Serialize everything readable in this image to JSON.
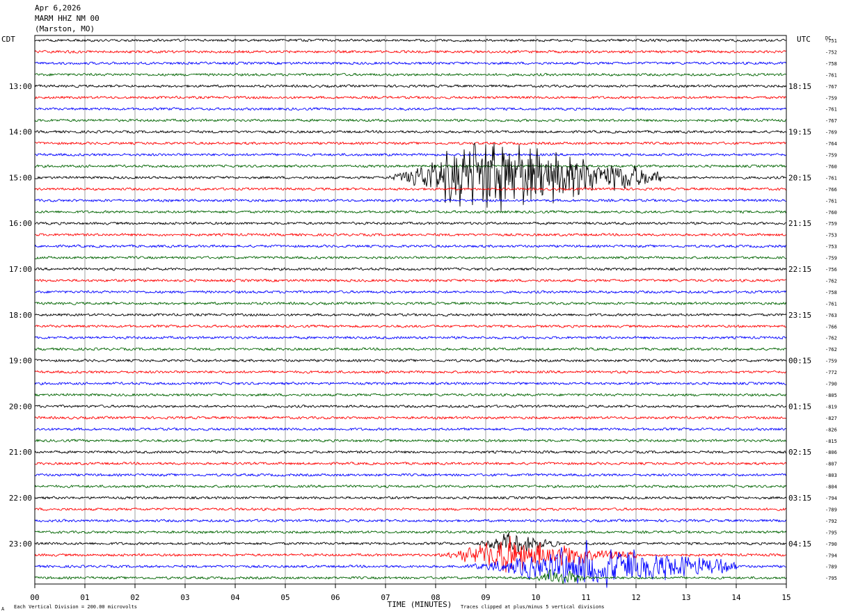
{
  "header": {
    "date": "Apr 6,2026",
    "station": "MARM HHZ NM 00",
    "location": "(Marston, MO)"
  },
  "axis": {
    "left_label": "CDT",
    "right_label": "UTC",
    "dc_label": "DC",
    "xlabel": "TIME (MINUTES)"
  },
  "footer": {
    "mark": "A",
    "scale_note": "Each Vertical Division =  200.00 microvolts",
    "clip_note": "Traces clipped at plus/minus 5 vertical divisions"
  },
  "chart_data": {
    "type": "line",
    "x_ticks": [
      "00",
      "01",
      "02",
      "03",
      "04",
      "05",
      "06",
      "07",
      "08",
      "09",
      "10",
      "11",
      "12",
      "13",
      "14",
      "15"
    ],
    "xlim": [
      0,
      15
    ],
    "grid": true,
    "left_hour_labels": [
      "13:00",
      "14:00",
      "15:00",
      "16:00",
      "17:00",
      "18:00",
      "19:00",
      "20:00",
      "21:00",
      "22:00",
      "23:00"
    ],
    "right_hour_labels": [
      "18:15",
      "19:15",
      "20:15",
      "21:15",
      "22:15",
      "23:15",
      "00:15",
      "01:15",
      "02:15",
      "03:15",
      "04:15"
    ],
    "hour_label_first_row": 4,
    "rows_per_hour": 4,
    "trace_colors": [
      "#000000",
      "#ff0000",
      "#0000ff",
      "#006400"
    ],
    "dc_offsets": [
      "751",
      "752",
      "758",
      "761",
      "767",
      "759",
      "761",
      "767",
      "769",
      "764",
      "759",
      "760",
      "761",
      "766",
      "761",
      "760",
      "759",
      "753",
      "753",
      "759",
      "756",
      "762",
      "758",
      "761",
      "763",
      "766",
      "762",
      "762",
      "759",
      "772",
      "790",
      "805",
      "819",
      "827",
      "826",
      "815",
      "806",
      "807",
      "803",
      "804",
      "794",
      "789",
      "792",
      "795",
      "790",
      "794",
      "789",
      "795"
    ],
    "events": [
      {
        "row": 12,
        "start_min": 7.0,
        "peak_min": 9.0,
        "end_min": 12.5,
        "amplitude": 5
      },
      {
        "row": 44,
        "start_min": 8.8,
        "peak_min": 9.5,
        "end_min": 10.5,
        "amplitude": 1.2
      },
      {
        "row": 45,
        "start_min": 8.0,
        "peak_min": 9.5,
        "end_min": 12.0,
        "amplitude": 2.2
      },
      {
        "row": 46,
        "start_min": 8.5,
        "peak_min": 11.0,
        "end_min": 14.0,
        "amplitude": 2.5
      },
      {
        "row": 47,
        "start_min": 10.0,
        "peak_min": 10.4,
        "end_min": 11.0,
        "amplitude": 1.3
      }
    ]
  }
}
